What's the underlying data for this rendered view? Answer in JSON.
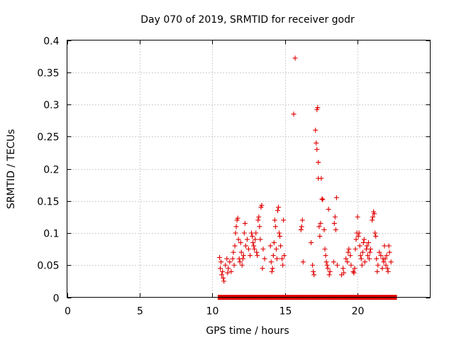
{
  "chart_data": {
    "type": "scatter",
    "title": "Day 070 of 2019, SRMTID for receiver godr",
    "xlabel": "GPS time / hours",
    "ylabel": "SRMTID / TECUs",
    "xlim": [
      0,
      25
    ],
    "ylim": [
      0,
      0.4
    ],
    "xticks": [
      0,
      5,
      10,
      15,
      20
    ],
    "xtick_labels": [
      "0",
      "5",
      "10",
      "15",
      "20"
    ],
    "yticks": [
      0,
      0.05,
      0.1,
      0.15,
      0.2,
      0.25,
      0.3,
      0.35,
      0.4
    ],
    "ytick_labels": [
      "0",
      "0.05",
      "0.1",
      "0.15",
      "0.2",
      "0.25",
      "0.3",
      "0.35",
      "0.4"
    ],
    "grid": true,
    "legend": "none",
    "marker": "+",
    "color": "#e00000",
    "baseline": {
      "x_start": 10.4,
      "x_end": 22.7,
      "y": 0.0
    },
    "series": [
      {
        "name": "SRMTID",
        "points": [
          [
            10.5,
            0.062
          ],
          [
            10.55,
            0.045
          ],
          [
            10.6,
            0.055
          ],
          [
            10.65,
            0.035
          ],
          [
            10.7,
            0.04
          ],
          [
            10.75,
            0.03
          ],
          [
            10.8,
            0.025
          ],
          [
            10.9,
            0.05
          ],
          [
            11.0,
            0.06
          ],
          [
            11.05,
            0.038
          ],
          [
            11.1,
            0.045
          ],
          [
            11.2,
            0.055
          ],
          [
            11.3,
            0.04
          ],
          [
            11.4,
            0.06
          ],
          [
            11.45,
            0.07
          ],
          [
            11.5,
            0.05
          ],
          [
            11.55,
            0.08
          ],
          [
            11.6,
            0.1
          ],
          [
            11.65,
            0.11
          ],
          [
            11.7,
            0.12
          ],
          [
            11.75,
            0.123
          ],
          [
            11.8,
            0.09
          ],
          [
            11.85,
            0.06
          ],
          [
            11.9,
            0.055
          ],
          [
            11.95,
            0.085
          ],
          [
            12.0,
            0.07
          ],
          [
            12.05,
            0.05
          ],
          [
            12.1,
            0.06
          ],
          [
            12.15,
            0.065
          ],
          [
            12.2,
            0.1
          ],
          [
            12.25,
            0.115
          ],
          [
            12.3,
            0.08
          ],
          [
            12.4,
            0.09
          ],
          [
            12.5,
            0.075
          ],
          [
            12.6,
            0.065
          ],
          [
            12.7,
            0.1
          ],
          [
            12.75,
            0.095
          ],
          [
            12.8,
            0.085
          ],
          [
            12.85,
            0.08
          ],
          [
            12.9,
            0.075
          ],
          [
            12.95,
            0.09
          ],
          [
            13.0,
            0.1
          ],
          [
            13.05,
            0.07
          ],
          [
            13.1,
            0.065
          ],
          [
            13.15,
            0.12
          ],
          [
            13.2,
            0.125
          ],
          [
            13.25,
            0.11
          ],
          [
            13.3,
            0.09
          ],
          [
            13.35,
            0.14
          ],
          [
            13.4,
            0.143
          ],
          [
            13.45,
            0.045
          ],
          [
            13.5,
            0.075
          ],
          [
            13.6,
            0.06
          ],
          [
            14.0,
            0.08
          ],
          [
            14.05,
            0.055
          ],
          [
            14.1,
            0.04
          ],
          [
            14.15,
            0.045
          ],
          [
            14.2,
            0.065
          ],
          [
            14.25,
            0.085
          ],
          [
            14.3,
            0.12
          ],
          [
            14.35,
            0.11
          ],
          [
            14.4,
            0.075
          ],
          [
            14.45,
            0.06
          ],
          [
            14.5,
            0.135
          ],
          [
            14.55,
            0.14
          ],
          [
            14.6,
            0.1
          ],
          [
            14.65,
            0.095
          ],
          [
            14.7,
            0.08
          ],
          [
            14.8,
            0.06
          ],
          [
            14.85,
            0.05
          ],
          [
            14.9,
            0.12
          ],
          [
            14.95,
            0.065
          ],
          [
            15.6,
            0.285
          ],
          [
            15.7,
            0.372
          ],
          [
            16.1,
            0.105
          ],
          [
            16.15,
            0.11
          ],
          [
            16.2,
            0.12
          ],
          [
            16.25,
            0.055
          ],
          [
            16.8,
            0.085
          ],
          [
            16.9,
            0.05
          ],
          [
            16.95,
            0.04
          ],
          [
            17.0,
            0.035
          ],
          [
            17.1,
            0.26
          ],
          [
            17.15,
            0.24
          ],
          [
            17.2,
            0.23
          ],
          [
            17.2,
            0.292
          ],
          [
            17.25,
            0.295
          ],
          [
            17.3,
            0.21
          ],
          [
            17.3,
            0.185
          ],
          [
            17.35,
            0.11
          ],
          [
            17.4,
            0.095
          ],
          [
            17.45,
            0.115
          ],
          [
            17.5,
            0.185
          ],
          [
            17.55,
            0.153
          ],
          [
            17.6,
            0.152
          ],
          [
            17.7,
            0.105
          ],
          [
            17.75,
            0.075
          ],
          [
            17.8,
            0.065
          ],
          [
            17.85,
            0.055
          ],
          [
            17.9,
            0.05
          ],
          [
            17.95,
            0.045
          ],
          [
            18.0,
            0.137
          ],
          [
            18.05,
            0.035
          ],
          [
            18.1,
            0.04
          ],
          [
            18.35,
            0.055
          ],
          [
            18.4,
            0.115
          ],
          [
            18.45,
            0.125
          ],
          [
            18.5,
            0.105
          ],
          [
            18.55,
            0.155
          ],
          [
            18.6,
            0.05
          ],
          [
            18.9,
            0.035
          ],
          [
            19.0,
            0.045
          ],
          [
            19.05,
            0.038
          ],
          [
            19.2,
            0.06
          ],
          [
            19.3,
            0.055
          ],
          [
            19.35,
            0.07
          ],
          [
            19.4,
            0.075
          ],
          [
            19.5,
            0.065
          ],
          [
            19.55,
            0.05
          ],
          [
            19.7,
            0.04
          ],
          [
            19.75,
            0.038
          ],
          [
            19.8,
            0.045
          ],
          [
            19.85,
            0.075
          ],
          [
            19.9,
            0.09
          ],
          [
            19.95,
            0.1
          ],
          [
            20.0,
            0.125
          ],
          [
            20.05,
            0.095
          ],
          [
            20.1,
            0.1
          ],
          [
            20.15,
            0.08
          ],
          [
            20.2,
            0.065
          ],
          [
            20.25,
            0.06
          ],
          [
            20.3,
            0.05
          ],
          [
            20.35,
            0.07
          ],
          [
            20.4,
            0.085
          ],
          [
            20.45,
            0.09
          ],
          [
            20.5,
            0.055
          ],
          [
            20.6,
            0.075
          ],
          [
            20.65,
            0.08
          ],
          [
            20.7,
            0.065
          ],
          [
            20.75,
            0.085
          ],
          [
            20.8,
            0.06
          ],
          [
            20.85,
            0.07
          ],
          [
            20.9,
            0.075
          ],
          [
            21.0,
            0.12
          ],
          [
            21.05,
            0.125
          ],
          [
            21.1,
            0.133
          ],
          [
            21.15,
            0.13
          ],
          [
            21.2,
            0.1
          ],
          [
            21.25,
            0.095
          ],
          [
            21.3,
            0.06
          ],
          [
            21.35,
            0.04
          ],
          [
            21.4,
            0.05
          ],
          [
            21.5,
            0.07
          ],
          [
            21.6,
            0.065
          ],
          [
            21.7,
            0.045
          ],
          [
            21.75,
            0.06
          ],
          [
            21.8,
            0.055
          ],
          [
            21.85,
            0.08
          ],
          [
            21.9,
            0.06
          ],
          [
            21.95,
            0.05
          ],
          [
            22.0,
            0.065
          ],
          [
            22.05,
            0.045
          ],
          [
            22.1,
            0.04
          ],
          [
            22.15,
            0.08
          ],
          [
            22.2,
            0.07
          ],
          [
            22.3,
            0.055
          ]
        ]
      }
    ]
  }
}
